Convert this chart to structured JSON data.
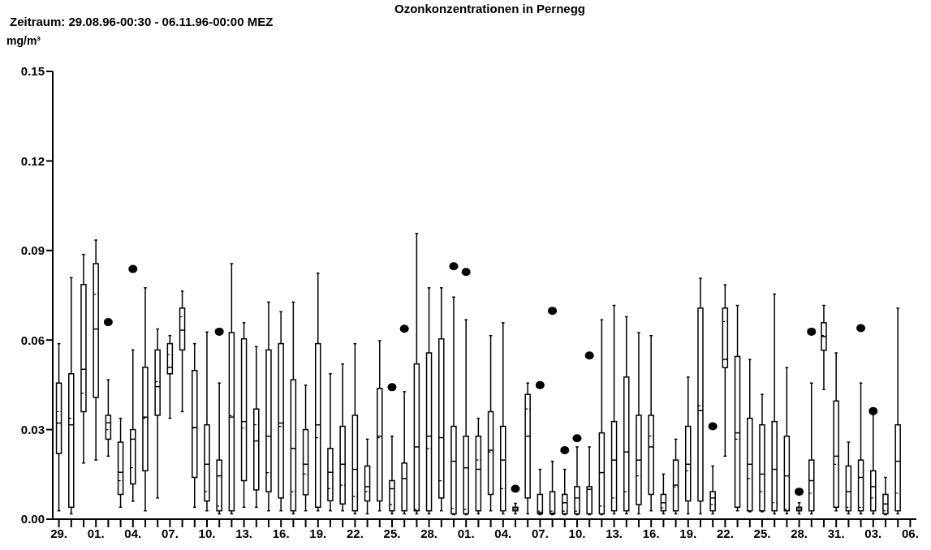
{
  "chart_data": {
    "type": "box",
    "title": "Ozonkonzentrationen in Pernegg",
    "subtitle": "Zeitraum: 29.08.96-00:30 - 06.11.96-00:00 MEZ",
    "ylabel": "mg/m³",
    "color": "#000000",
    "categories": [
      "29.",
      null,
      null,
      "01.",
      null,
      null,
      "04.",
      null,
      null,
      "07.",
      null,
      null,
      "10.",
      null,
      null,
      "13.",
      null,
      null,
      "16.",
      null,
      null,
      "19.",
      null,
      null,
      "22.",
      null,
      null,
      "25.",
      null,
      null,
      "28.",
      null,
      null,
      "01.",
      null,
      null,
      "04.",
      null,
      null,
      "07.",
      null,
      null,
      "10.",
      null,
      null,
      "13.",
      null,
      null,
      "16.",
      null,
      null,
      "19.",
      null,
      null,
      "22.",
      null,
      null,
      "25.",
      null,
      null,
      "28.",
      null,
      null,
      "31.",
      null,
      null,
      "03.",
      null,
      null,
      "06."
    ],
    "ylim": [
      0,
      0.15
    ],
    "yticks": [
      {
        "value": 0,
        "label": "0.00"
      },
      {
        "value": 0.03,
        "label": "0.03"
      },
      {
        "value": 0.06,
        "label": "0.06"
      },
      {
        "value": 0.09,
        "label": "0.09"
      },
      {
        "value": 0.12,
        "label": "0.12"
      },
      {
        "value": 0.15,
        "label": "0.15"
      }
    ],
    "boxes": [
      {
        "low": 0.0028,
        "q1": 0.022,
        "median": 0.0322,
        "q3": 0.0456,
        "high": 0.0588,
        "mean": 0.036
      },
      {
        "low": 0.0018,
        "q1": 0.004,
        "median": 0.0316,
        "q3": 0.0487,
        "high": 0.0809,
        "mean": 0.0338
      },
      {
        "low": 0.0188,
        "q1": 0.036,
        "median": 0.0502,
        "q3": 0.0786,
        "high": 0.0887,
        "mean": 0.0422
      },
      {
        "low": 0.0198,
        "q1": 0.0408,
        "median": 0.0637,
        "q3": 0.0856,
        "high": 0.0935,
        "mean": 0.0753
      },
      {
        "low": 0.0211,
        "q1": 0.0268,
        "median": 0.0323,
        "q3": 0.0348,
        "high": 0.0467,
        "mean": 0.03,
        "outliers": [
          0.066
        ]
      },
      {
        "low": 0.004,
        "q1": 0.0083,
        "median": 0.0157,
        "q3": 0.0258,
        "high": 0.0338,
        "mean": 0.0129
      },
      {
        "low": 0.006,
        "q1": 0.0118,
        "median": 0.0268,
        "q3": 0.03,
        "high": 0.0567,
        "mean": 0.0172,
        "outliers": [
          0.0838
        ]
      },
      {
        "low": 0.0028,
        "q1": 0.0162,
        "median": 0.0342,
        "q3": 0.0509,
        "high": 0.0775,
        "mean": 0.0338
      },
      {
        "low": 0.0071,
        "q1": 0.0348,
        "median": 0.0444,
        "q3": 0.0567,
        "high": 0.0637,
        "mean": 0.046
      },
      {
        "low": 0.0338,
        "q1": 0.0487,
        "median": 0.0509,
        "q3": 0.0588,
        "high": 0.0615,
        "mean": 0.0551
      },
      {
        "low": 0.036,
        "q1": 0.0567,
        "median": 0.0633,
        "q3": 0.0707,
        "high": 0.0764,
        "mean": 0.0678
      },
      {
        "low": 0.004,
        "q1": 0.014,
        "median": 0.0307,
        "q3": 0.0498,
        "high": 0.0588,
        "mean": 0.0305
      },
      {
        "low": 0.0028,
        "q1": 0.0061,
        "median": 0.0184,
        "q3": 0.0316,
        "high": 0.0627,
        "mean": 0.0092
      },
      {
        "low": 0.0018,
        "q1": 0.0028,
        "median": 0.0145,
        "q3": 0.0198,
        "high": 0.0456,
        "mean": 0.0044,
        "outliers": [
          0.0628
        ]
      },
      {
        "low": 0.0018,
        "q1": 0.0028,
        "median": 0.0342,
        "q3": 0.0625,
        "high": 0.0856,
        "mean": 0.0347
      },
      {
        "low": 0.004,
        "q1": 0.0129,
        "median": 0.0327,
        "q3": 0.0604,
        "high": 0.0658,
        "mean": 0.0305
      },
      {
        "low": 0.004,
        "q1": 0.0098,
        "median": 0.0262,
        "q3": 0.0369,
        "high": 0.0578,
        "mean": 0.0316
      },
      {
        "low": 0.0028,
        "q1": 0.0092,
        "median": 0.0278,
        "q3": 0.0567,
        "high": 0.0727,
        "mean": 0.0156
      },
      {
        "low": 0.0028,
        "q1": 0.0071,
        "median": 0.0322,
        "q3": 0.0588,
        "high": 0.0695,
        "mean": 0.0311
      },
      {
        "low": 0.0018,
        "q1": 0.0028,
        "median": 0.0237,
        "q3": 0.0467,
        "high": 0.0727,
        "mean": 0.0092
      },
      {
        "low": 0.0028,
        "q1": 0.0082,
        "median": 0.0184,
        "q3": 0.03,
        "high": 0.0449,
        "mean": 0.0151
      },
      {
        "low": 0.0028,
        "q1": 0.004,
        "median": 0.0316,
        "q3": 0.0588,
        "high": 0.0824,
        "mean": 0.0273
      },
      {
        "low": 0.0028,
        "q1": 0.0062,
        "median": 0.0157,
        "q3": 0.0237,
        "high": 0.0487,
        "mean": 0.0102
      },
      {
        "low": 0.0028,
        "q1": 0.0051,
        "median": 0.0184,
        "q3": 0.0311,
        "high": 0.052,
        "mean": 0.0114
      },
      {
        "low": 0.0018,
        "q1": 0.0028,
        "median": 0.0167,
        "q3": 0.0348,
        "high": 0.0588,
        "mean": 0.0076
      },
      {
        "low": 0.0018,
        "q1": 0.0061,
        "median": 0.0109,
        "q3": 0.0178,
        "high": 0.0268,
        "mean": 0.0092
      },
      {
        "low": 0.0028,
        "q1": 0.0061,
        "median": 0.0278,
        "q3": 0.0438,
        "high": 0.0598,
        "mean": 0.0273
      },
      {
        "low": 0.0018,
        "q1": 0.0028,
        "median": 0.0102,
        "q3": 0.0129,
        "high": 0.0278,
        "mean": 0.0049,
        "outliers": [
          0.0442
        ]
      },
      {
        "low": 0.0018,
        "q1": 0.0028,
        "median": 0.0136,
        "q3": 0.0188,
        "high": 0.0427,
        "outliers": [
          0.0638
        ]
      },
      {
        "low": 0.0018,
        "q1": 0.0028,
        "median": 0.0242,
        "q3": 0.052,
        "high": 0.0957,
        "mean": 0.0033
      },
      {
        "low": 0.0018,
        "q1": 0.0028,
        "median": 0.0278,
        "q3": 0.0557,
        "high": 0.0775,
        "mean": 0.0237
      },
      {
        "low": 0.0028,
        "q1": 0.0071,
        "median": 0.0273,
        "q3": 0.0604,
        "high": 0.0775,
        "mean": 0.0129
      },
      {
        "low": 0.0015,
        "q1": 0.0018,
        "median": 0.0194,
        "q3": 0.0311,
        "high": 0.0744,
        "mean": 0.0036,
        "outliers": [
          0.0847
        ]
      },
      {
        "low": 0.0015,
        "q1": 0.0018,
        "median": 0.0172,
        "q3": 0.0278,
        "high": 0.0668,
        "mean": 0.0033,
        "outliers": [
          0.0828
        ]
      },
      {
        "low": 0.0018,
        "q1": 0.0028,
        "median": 0.0167,
        "q3": 0.0278,
        "high": 0.0338,
        "mean": 0.0198
      },
      {
        "low": 0.0028,
        "q1": 0.0083,
        "median": 0.0231,
        "q3": 0.036,
        "high": 0.0615,
        "mean": 0.0225
      },
      {
        "low": 0.0018,
        "q1": 0.0028,
        "median": 0.0198,
        "q3": 0.0311,
        "high": 0.0658,
        "mean": 0.0102
      },
      {
        "low": 0.0018,
        "q1": 0.0028,
        "median": 0.0034,
        "q3": 0.004,
        "high": 0.0053,
        "outliers": [
          0.0102
        ]
      },
      {
        "low": 0.0018,
        "q1": 0.0071,
        "median": 0.0278,
        "q3": 0.0418,
        "high": 0.0456,
        "mean": 0.0369
      },
      {
        "low": 0.0015,
        "q1": 0.0018,
        "median": 0.0022,
        "q3": 0.0083,
        "high": 0.0167,
        "mean": 0.0027,
        "outliers": [
          0.0449
        ]
      },
      {
        "low": 0.0015,
        "q1": 0.0018,
        "median": 0.002,
        "q3": 0.0092,
        "high": 0.0194,
        "mean": 0.0027,
        "outliers": [
          0.0698
        ]
      },
      {
        "low": 0.0015,
        "q1": 0.0018,
        "median": 0.0055,
        "q3": 0.0083,
        "high": 0.0167,
        "mean": 0.0027,
        "outliers": [
          0.0231
        ]
      },
      {
        "low": 0.0015,
        "q1": 0.0018,
        "median": 0.0071,
        "q3": 0.0109,
        "high": 0.0242,
        "mean": 0.0027,
        "outliers": [
          0.0271
        ]
      },
      {
        "low": 0.0015,
        "q1": 0.0018,
        "median": 0.01,
        "q3": 0.0109,
        "high": 0.0242,
        "outliers": [
          0.0548
        ]
      },
      {
        "low": 0.0015,
        "q1": 0.0018,
        "median": 0.0156,
        "q3": 0.0289,
        "high": 0.0668,
        "mean": 0.0044
      },
      {
        "low": 0.0018,
        "q1": 0.0028,
        "median": 0.0198,
        "q3": 0.0327,
        "high": 0.0716,
        "mean": 0.0071
      },
      {
        "low": 0.0018,
        "q1": 0.0028,
        "median": 0.0225,
        "q3": 0.0476,
        "high": 0.0678,
        "mean": 0.0092
      },
      {
        "low": 0.0018,
        "q1": 0.0049,
        "median": 0.0198,
        "q3": 0.0348,
        "high": 0.0625,
        "mean": 0.0145
      },
      {
        "low": 0.0028,
        "q1": 0.0083,
        "median": 0.0242,
        "q3": 0.0348,
        "high": 0.0615,
        "mean": 0.0278
      },
      {
        "low": 0.0018,
        "q1": 0.0028,
        "median": 0.0055,
        "q3": 0.0083,
        "high": 0.0151,
        "mean": 0.0038
      },
      {
        "low": 0.0018,
        "q1": 0.0028,
        "median": 0.0114,
        "q3": 0.0198,
        "high": 0.0268,
        "mean": 0.0108
      },
      {
        "low": 0.0018,
        "q1": 0.0061,
        "median": 0.0184,
        "q3": 0.0311,
        "high": 0.0476,
        "mean": 0.0162
      },
      {
        "low": 0.0018,
        "q1": 0.0061,
        "median": 0.0364,
        "q3": 0.0707,
        "high": 0.0807,
        "mean": 0.038
      },
      {
        "low": 0.0018,
        "q1": 0.0028,
        "median": 0.0071,
        "q3": 0.0092,
        "high": 0.0178,
        "mean": 0.0049,
        "outliers": [
          0.0311
        ]
      },
      {
        "low": 0.0211,
        "q1": 0.0508,
        "median": 0.0535,
        "q3": 0.0707,
        "high": 0.0785,
        "mean": 0.0662
      },
      {
        "low": 0.0028,
        "q1": 0.004,
        "median": 0.0289,
        "q3": 0.0545,
        "high": 0.0716,
        "mean": 0.0268
      },
      {
        "low": 0.0025,
        "q1": 0.0028,
        "median": 0.0184,
        "q3": 0.0338,
        "high": 0.0535,
        "mean": 0.0136
      },
      {
        "low": 0.0025,
        "q1": 0.0028,
        "median": 0.0151,
        "q3": 0.0316,
        "high": 0.0418,
        "mean": 0.0092
      },
      {
        "low": 0.0018,
        "q1": 0.0028,
        "median": 0.0167,
        "q3": 0.0327,
        "high": 0.0754,
        "mean": 0.0055
      },
      {
        "low": 0.0018,
        "q1": 0.0028,
        "median": 0.0145,
        "q3": 0.0278,
        "high": 0.0508,
        "mean": 0.0033
      },
      {
        "low": 0.0018,
        "q1": 0.0028,
        "median": 0.0034,
        "q3": 0.004,
        "high": 0.0055,
        "outliers": [
          0.0092
        ]
      },
      {
        "low": 0.0018,
        "q1": 0.0028,
        "median": 0.0129,
        "q3": 0.0198,
        "high": 0.0456,
        "mean": 0.0087,
        "outliers": [
          0.0628
        ]
      },
      {
        "low": 0.0434,
        "q1": 0.0566,
        "median": 0.0612,
        "q3": 0.0658,
        "high": 0.0716,
        "mean": 0.0615
      },
      {
        "low": 0.0028,
        "q1": 0.004,
        "median": 0.0211,
        "q3": 0.0396,
        "high": 0.0557,
        "mean": 0.0184
      },
      {
        "low": 0.0018,
        "q1": 0.0028,
        "median": 0.0092,
        "q3": 0.0178,
        "high": 0.0258,
        "mean": 0.004
      },
      {
        "low": 0.0018,
        "q1": 0.0028,
        "median": 0.014,
        "q3": 0.0198,
        "high": 0.0456,
        "mean": 0.004,
        "outliers": [
          0.064
        ]
      },
      {
        "low": 0.0018,
        "q1": 0.0028,
        "median": 0.0109,
        "q3": 0.0162,
        "high": 0.035,
        "mean": 0.0071,
        "outliers": [
          0.0362
        ]
      },
      {
        "low": 0.0015,
        "q1": 0.0018,
        "median": 0.0051,
        "q3": 0.0083,
        "high": 0.014,
        "mean": 0.0028
      },
      {
        "low": 0.0018,
        "q1": 0.0028,
        "median": 0.0194,
        "q3": 0.0316,
        "high": 0.0707,
        "mean": 0.0087
      },
      null
    ]
  }
}
